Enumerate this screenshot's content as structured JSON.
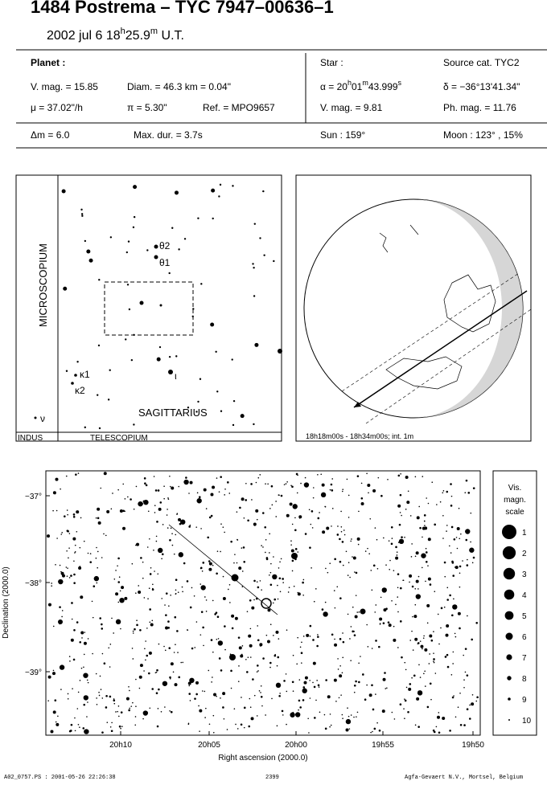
{
  "header": {
    "title": "1484 Postrema  –  TYC 7947–00636–1",
    "date": [
      "2002 jul  6  18",
      "h",
      "25.9",
      "m",
      " U.T."
    ]
  },
  "info": {
    "planet": {
      "label": "Planet :",
      "vmag": "V. mag. = 15.85",
      "diam": "Diam. = 46.3 km = 0.04\"",
      "mu": "μ = 37.02\"/h",
      "pi": "π = 5.30\"",
      "ref": "Ref. = MPO9657"
    },
    "star": {
      "label": "Star :",
      "source": "Source cat.  TYC2",
      "alpha": [
        "α = 20",
        "h",
        "01",
        "m",
        "43.999",
        "s"
      ],
      "delta": "δ = −36°13'41.34\"",
      "vmag": "V. mag. =  9.81",
      "phmag": "Ph. mag. = 11.76"
    },
    "bottom": {
      "dm": "Δm = 6.0",
      "maxdur": "Max. dur. = 3.7s",
      "sun": "Sun : 159°",
      "moon": "Moon : 123° , 15%"
    }
  },
  "finder": {
    "constellations": [
      "MICROSCOPIUM",
      "SAGITTARIUS",
      "INDUS",
      "TELESCOPIUM"
    ],
    "stars": [
      "θ2",
      "θ1",
      "κ1",
      "κ2",
      "ι",
      "ν"
    ]
  },
  "globe": {
    "caption": "18h18m00s - 18h34m00s; int.  1m"
  },
  "chart": {
    "yticks": [
      "−37°",
      "−38°",
      "−39°"
    ],
    "xticks": [
      "20h10",
      "20h05",
      "20h00",
      "19h55",
      "19h50"
    ],
    "ylabel": "Declination (2000.0)",
    "xlabel": "Right ascension (2000.0)",
    "scale_title": [
      "Vis.",
      "magn.",
      "scale"
    ],
    "magnitudes": [
      1,
      2,
      3,
      4,
      5,
      6,
      7,
      8,
      9,
      10
    ]
  },
  "footer": {
    "left": "A02_0757.PS : 2001-05-26 22:26:38",
    "center": "2399",
    "right": "Agfa-Gevaert N.V., Mortsel, Belgium"
  }
}
